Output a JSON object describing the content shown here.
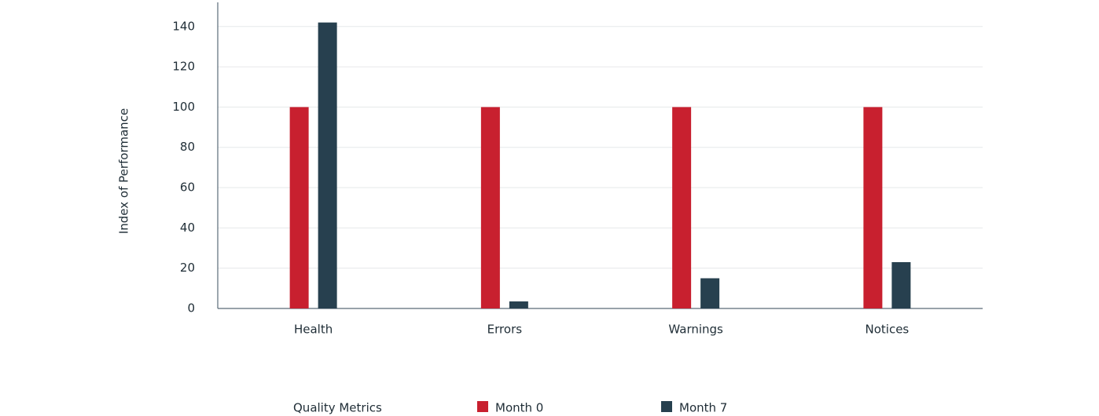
{
  "chart_data": {
    "type": "bar",
    "y_label": "Index of Performance",
    "x_label": "Quality Metrics",
    "categories": [
      "Health",
      "Errors",
      "Warnings",
      "Notices"
    ],
    "series": [
      {
        "name": "Month 0",
        "color": "#c8202f",
        "values": [
          100,
          100,
          100,
          100
        ]
      },
      {
        "name": "Month 7",
        "color": "#27404f",
        "values": [
          142,
          3.5,
          15,
          23
        ]
      }
    ],
    "ylim": [
      0,
      152
    ],
    "yticks": [
      0,
      20,
      40,
      60,
      80,
      100,
      120,
      140
    ],
    "grid": true
  }
}
